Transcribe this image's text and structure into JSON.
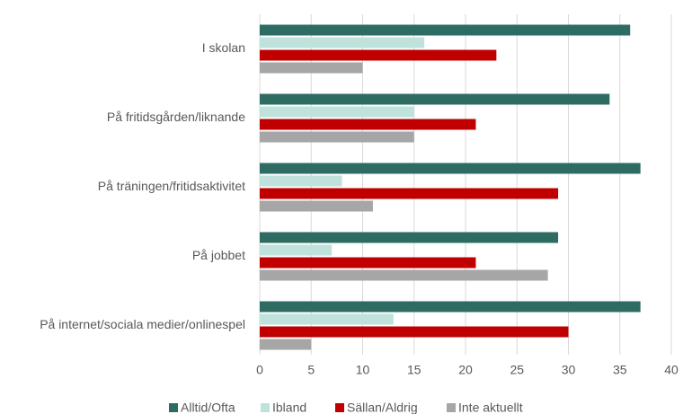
{
  "chart_data": {
    "type": "bar",
    "orientation": "horizontal",
    "categories": [
      "I skolan",
      "På fritidsgården/liknande",
      "På träningen/fritidsaktivitet",
      "På jobbet",
      "På internet/sociala medier/onlinespel"
    ],
    "series": [
      {
        "name": "Alltid/Ofta",
        "color": "#2e6b62",
        "values": [
          36,
          34,
          37,
          29,
          37
        ]
      },
      {
        "name": "Ibland",
        "color": "#bfe3dc",
        "values": [
          16,
          15,
          8,
          7,
          13
        ]
      },
      {
        "name": "Sällan/Aldrig",
        "color": "#c00000",
        "values": [
          23,
          21,
          29,
          21,
          30
        ]
      },
      {
        "name": "Inte aktuellt",
        "color": "#a6a6a6",
        "values": [
          10,
          15,
          11,
          28,
          5
        ]
      }
    ],
    "xlim": [
      0,
      40
    ],
    "xticks": [
      0,
      5,
      10,
      15,
      20,
      25,
      30,
      35,
      40
    ],
    "grid": true,
    "legend": "bottom"
  }
}
